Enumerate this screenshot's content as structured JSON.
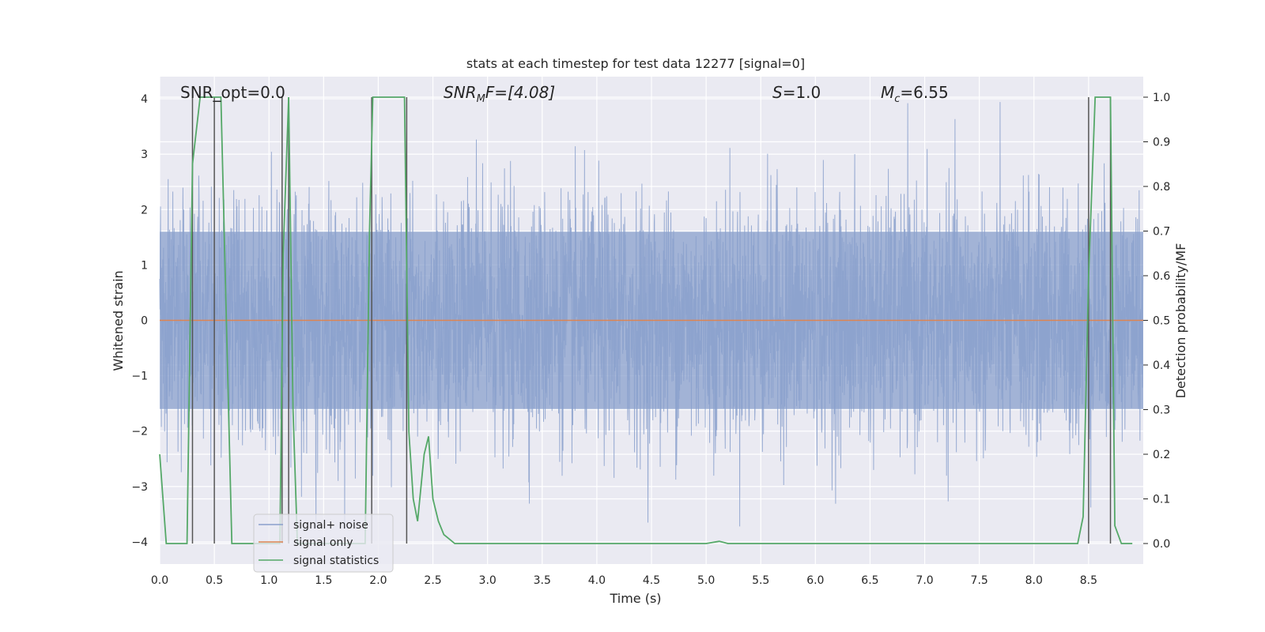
{
  "chart_data": {
    "type": "line",
    "title": "stats at each timestep for test data 12277 [signal=0]",
    "xlabel": "Time (s)",
    "ylabel_left": "Whitened strain",
    "ylabel_right": "Detection probability/MF",
    "xlim": [
      0.0,
      9.0
    ],
    "ylim_left": [
      -4.4,
      4.4
    ],
    "ylim_right": [
      -0.046,
      1.046
    ],
    "x_ticks": [
      "0.0",
      "0.5",
      "1.0",
      "1.5",
      "2.0",
      "2.5",
      "3.0",
      "3.5",
      "4.0",
      "4.5",
      "5.0",
      "5.5",
      "6.0",
      "6.5",
      "7.0",
      "7.5",
      "8.0",
      "8.5"
    ],
    "x_tick_values": [
      0.0,
      0.5,
      1.0,
      1.5,
      2.0,
      2.5,
      3.0,
      3.5,
      4.0,
      4.5,
      5.0,
      5.5,
      6.0,
      6.5,
      7.0,
      7.5,
      8.0,
      8.5
    ],
    "y_left_ticks": [
      "4",
      "3",
      "2",
      "1",
      "0",
      "−1",
      "−2",
      "−3",
      "−4"
    ],
    "y_left_tick_values": [
      4,
      3,
      2,
      1,
      0,
      -1,
      -2,
      -3,
      -4
    ],
    "y_right_ticks": [
      "1.0",
      "0.9",
      "0.8",
      "0.7",
      "0.6",
      "0.5",
      "0.4",
      "0.3",
      "0.2",
      "0.1",
      "0.0"
    ],
    "y_right_tick_values": [
      1.0,
      0.9,
      0.8,
      0.7,
      0.6,
      0.5,
      0.4,
      0.3,
      0.2,
      0.1,
      0.0
    ],
    "grid": true,
    "legend_position": "bottom-left",
    "legend": [
      {
        "label": "signal+ noise",
        "color": "#8aa0cc"
      },
      {
        "label": "signal only",
        "color": "#dd8452"
      },
      {
        "label": "signal statistics",
        "color": "#55a868"
      }
    ],
    "annotations": {
      "snr_opt": "SNR_opt=0.0",
      "snr_mf_main": "SNR",
      "snr_mf_sub": "M",
      "snr_mf_rest": "F=[4.08]",
      "s_main": "S",
      "s_rest": "=1.0",
      "mc_main": "M",
      "mc_sub": "c",
      "mc_rest": "=6.55"
    },
    "series": [
      {
        "name": "signal+ noise",
        "axis": "left",
        "style": "dense noise trace",
        "typical_envelope": [
          -2.0,
          2.0
        ],
        "extreme_range": [
          -4.0,
          4.0
        ],
        "dense_band": [
          -1.6,
          1.6
        ]
      },
      {
        "name": "signal only",
        "axis": "left",
        "x": [
          0.0,
          9.0
        ],
        "y": [
          0.0,
          0.0
        ]
      },
      {
        "name": "signal statistics",
        "axis": "right",
        "x": [
          0.0,
          0.06,
          0.12,
          0.2,
          0.25,
          0.3,
          0.37,
          0.42,
          0.5,
          0.56,
          0.62,
          0.66,
          0.75,
          0.82,
          0.92,
          1.0,
          1.05,
          1.1,
          1.13,
          1.18,
          1.22,
          1.26,
          1.32,
          1.4,
          1.5,
          1.6,
          1.7,
          1.8,
          1.88,
          1.92,
          1.95,
          2.0,
          2.05,
          2.1,
          2.15,
          2.24,
          2.28,
          2.32,
          2.36,
          2.42,
          2.46,
          2.5,
          2.55,
          2.6,
          2.65,
          2.7,
          2.8,
          3.0,
          3.5,
          4.0,
          4.5,
          5.0,
          5.12,
          5.2,
          5.5,
          5.7,
          6.0,
          6.5,
          7.0,
          7.5,
          8.0,
          8.4,
          8.45,
          8.5,
          8.56,
          8.62,
          8.7,
          8.74,
          8.8,
          8.9
        ],
        "y": [
          0.2,
          0.0,
          0.0,
          0.0,
          0.0,
          0.85,
          1.0,
          1.0,
          1.0,
          1.0,
          0.4,
          0.0,
          0.0,
          0.0,
          0.0,
          0.0,
          0.0,
          0.0,
          0.65,
          1.0,
          0.3,
          0.0,
          0.0,
          0.0,
          0.0,
          0.0,
          0.0,
          0.0,
          0.0,
          0.7,
          1.0,
          1.0,
          1.0,
          1.0,
          1.0,
          1.0,
          0.25,
          0.1,
          0.05,
          0.2,
          0.24,
          0.1,
          0.05,
          0.02,
          0.01,
          0.0,
          0.0,
          0.0,
          0.0,
          0.0,
          0.0,
          0.0,
          0.005,
          0.0,
          0.0,
          0.0,
          0.0,
          0.0,
          0.0,
          0.0,
          0.0,
          0.0,
          0.06,
          0.6,
          1.0,
          1.0,
          1.0,
          0.04,
          0.0,
          0.0
        ]
      }
    ],
    "vertical_markers_x": [
      0.3,
      0.5,
      1.12,
      1.18,
      1.94,
      2.26,
      8.5,
      8.7
    ]
  }
}
